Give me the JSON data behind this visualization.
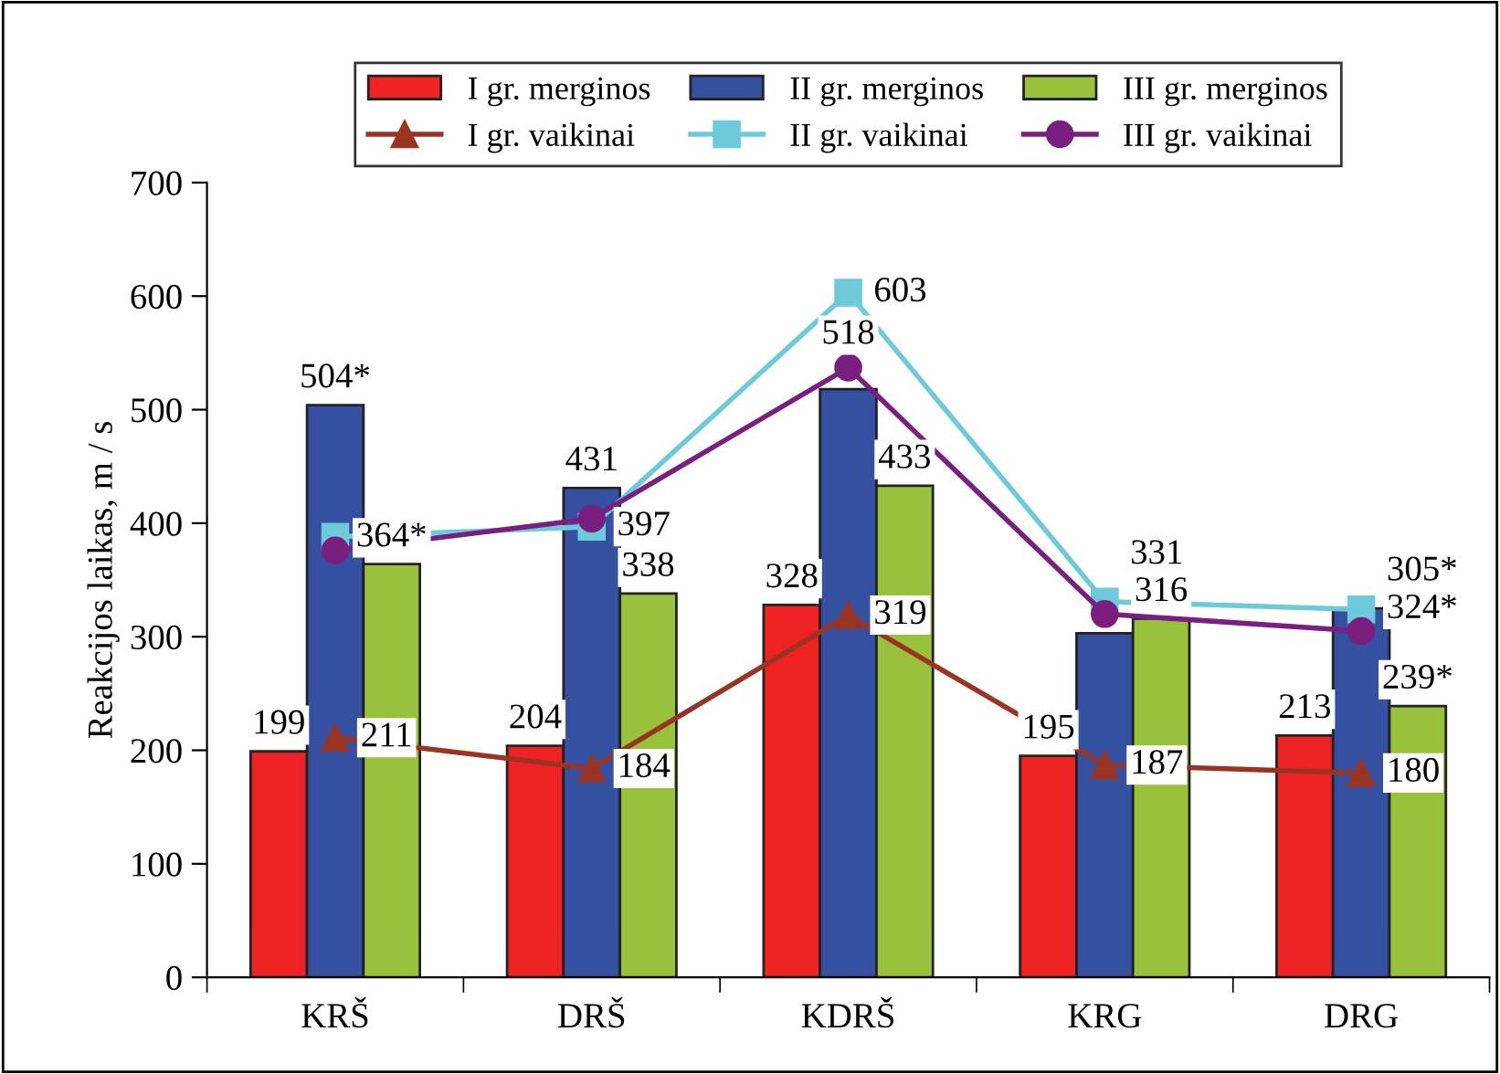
{
  "chart_data": {
    "type": "bar",
    "ylabel": "Reakcijos laikas, m / s",
    "categories": [
      "KRŠ",
      "DRŠ",
      "KDRŠ",
      "KRG",
      "DRG"
    ],
    "series": [
      {
        "name": "I gr. merginos",
        "color": "#ee2222",
        "values": [
          199,
          204,
          328,
          195,
          213
        ],
        "value_labels": [
          "199",
          "204",
          "328",
          "195",
          "213"
        ]
      },
      {
        "name": "II gr. merginos",
        "color": "#3550a0",
        "values": [
          504,
          431,
          518,
          303,
          325
        ],
        "value_labels": [
          "504*",
          "431",
          "518",
          null,
          null
        ]
      },
      {
        "name": "III gr. merginos",
        "color": "#99c23c",
        "values": [
          364,
          338,
          433,
          316,
          239
        ],
        "value_labels": [
          "364*",
          "338",
          "433",
          "316",
          "239*"
        ]
      },
      {
        "name": "I gr. vaikinai",
        "type": "line",
        "marker": "triangle",
        "color": "#993322",
        "values": [
          211,
          184,
          319,
          187,
          180
        ],
        "value_labels": [
          "211",
          "184",
          "319",
          "187",
          "180"
        ]
      },
      {
        "name": "II gr. vaikinai",
        "type": "line",
        "marker": "square",
        "color": "#6ccadb",
        "values": [
          388,
          397,
          603,
          331,
          324
        ],
        "value_labels": [
          null,
          "397",
          "603",
          "331",
          "324*"
        ]
      },
      {
        "name": "III gr. vaikinai",
        "type": "line",
        "marker": "circle",
        "color": "#7a1f80",
        "values": [
          376,
          404,
          537,
          320,
          305
        ],
        "value_labels": [
          null,
          null,
          null,
          null,
          "305*"
        ]
      }
    ],
    "ylim": [
      0,
      700
    ],
    "yticks": [
      0,
      100,
      200,
      300,
      400,
      500,
      600,
      700
    ],
    "legend": "top",
    "grid": false
  }
}
